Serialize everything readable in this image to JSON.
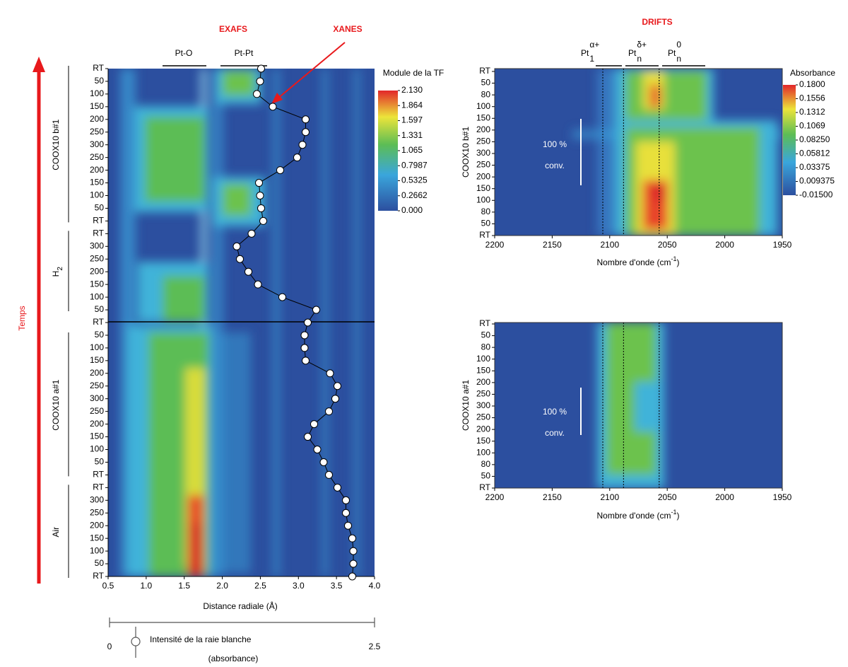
{
  "chart_data": [
    {
      "type": "heatmap",
      "title": "EXAFS",
      "ylabel": "Temps",
      "annotations": [
        "Pt-O",
        "Pt-Pt"
      ],
      "xlabel": "Distance radiale (Å)",
      "xlim": [
        0.5,
        4.0
      ],
      "xticks": [
        0.5,
        {
          "value": 1,
          "label": "1.0"
        },
        1.5,
        {
          "value": 2,
          "label": "2.0"
        },
        2.5,
        {
          "value": 3,
          "label": "3.0"
        },
        3.5,
        {
          "value": 4,
          "label": "4.0"
        }
      ],
      "rows": [
        "RT",
        "50",
        "100",
        "150",
        "200",
        "250",
        "300",
        "250",
        "200",
        "150",
        "100",
        "50",
        "RT",
        "RT",
        "300",
        "250",
        "200",
        "150",
        "100",
        "50",
        "RT",
        "50",
        "100",
        "150",
        "200",
        "250",
        "300",
        "250",
        "200",
        "150",
        "100",
        "50",
        "RT",
        "RT",
        "300",
        "250",
        "200",
        "150",
        "100",
        "50",
        "RT"
      ],
      "groups": [
        {
          "label": "COOX10 b#1"
        },
        {
          "label": "H",
          "sub": "2"
        },
        {
          "label": "COOX10 a#1"
        },
        {
          "label": "Air"
        }
      ],
      "colorbar": {
        "title": "Module de la TF",
        "zlim": [
          0,
          2.13
        ],
        "ticks": [
          {
            "value": 2.13,
            "label": "2.130"
          },
          1.864,
          1.597,
          1.331,
          1.065,
          0.7987,
          0.5325,
          0.2662,
          {
            "value": 0,
            "label": "0.000"
          }
        ]
      },
      "x2lim": [
        0,
        2.5
      ],
      "x2ticks": [
        0,
        2.5
      ],
      "x2label": [
        "Intensité de la raie blanche",
        "(absorbance)"
      ],
      "series": [
        {
          "name": "XANES",
          "axis": "x2",
          "color": "#ffffff",
          "values": [
            1.43,
            1.42,
            1.39,
            1.54,
            1.85,
            1.85,
            1.82,
            1.77,
            1.61,
            1.41,
            1.42,
            1.43,
            1.45,
            1.34,
            1.2,
            1.23,
            1.31,
            1.4,
            1.63,
            1.95,
            1.87,
            1.84,
            1.84,
            1.85,
            2.08,
            2.15,
            2.13,
            2.07,
            1.93,
            1.87,
            1.96,
            2.02,
            2.07,
            2.15,
            2.23,
            2.23,
            2.25,
            2.29,
            2.3,
            2.3,
            2.29
          ]
        }
      ]
    },
    {
      "type": "heatmap",
      "title": "DRIFTS",
      "ylabel": "COOX10 b#1",
      "species": [
        {
          "base": "Pt",
          "sub": "1",
          "sup": "α+"
        },
        {
          "base": "Pt",
          "sub": "n",
          "sup": "δ+"
        },
        {
          "base": "Pt",
          "sub": "n",
          "sup": "0"
        }
      ],
      "xlabel": [
        "Nombre d'onde (cm",
        "-1",
        ")"
      ],
      "xlim": [
        2200,
        1950
      ],
      "xticks": [
        2200,
        2150,
        2100,
        2050,
        2000,
        1950
      ],
      "rows": [
        "RT",
        "50",
        "80",
        "100",
        "150",
        "200",
        "250",
        "300",
        "250",
        "200",
        "150",
        "100",
        "80",
        "50",
        "RT"
      ],
      "vlines": [
        2106,
        2088,
        2057
      ],
      "notes": [
        "100 %",
        "conv."
      ],
      "colorbar": {
        "title": "Absorbance",
        "zlim": [
          -0.015,
          0.18
        ],
        "ticks": [
          {
            "value": 0.18,
            "label": "0.1800"
          },
          0.1556,
          0.1312,
          0.1069,
          {
            "value": 0.0825,
            "label": "0.08250"
          },
          0.05812,
          0.03375,
          0.009375,
          {
            "value": -0.015,
            "label": "-0.01500"
          }
        ]
      }
    },
    {
      "type": "heatmap",
      "ylabel": "COOX10 a#1",
      "xlabel": [
        "Nombre d'onde (cm",
        "-1",
        ")"
      ],
      "xlim": [
        2200,
        1950
      ],
      "xticks": [
        2200,
        2150,
        2100,
        2050,
        2000,
        1950
      ],
      "rows": [
        "RT",
        "50",
        "80",
        "100",
        "150",
        "200",
        "250",
        "300",
        "250",
        "200",
        "150",
        "100",
        "80",
        "50",
        "RT"
      ],
      "vlines": [
        2106,
        2088,
        2057
      ],
      "notes": [
        "100 %",
        "conv."
      ]
    }
  ]
}
